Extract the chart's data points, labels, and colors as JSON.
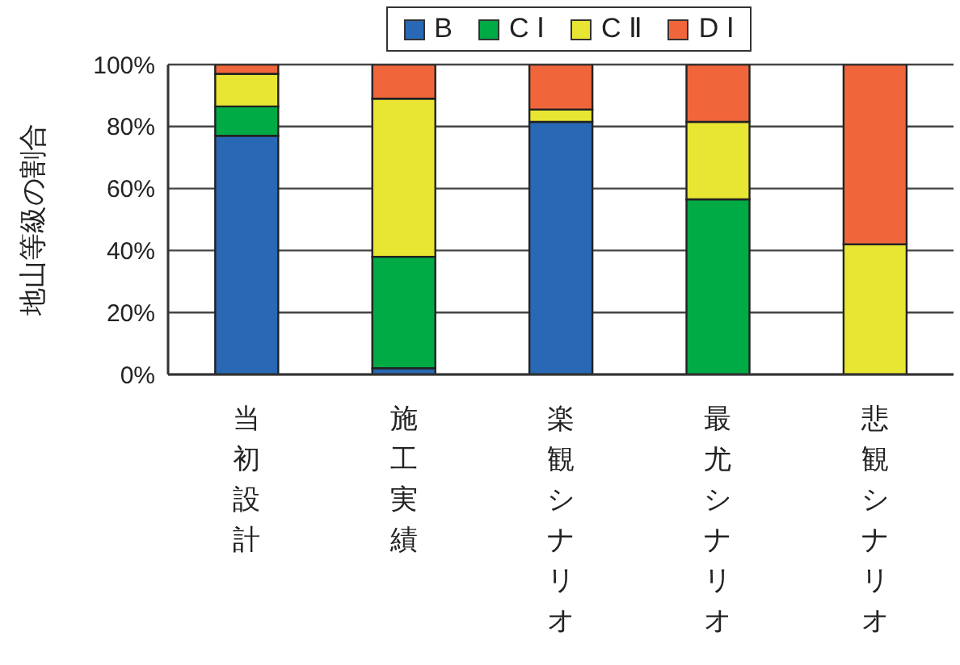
{
  "chart_data": {
    "type": "bar",
    "stacked": true,
    "categories": [
      "当初設計",
      "施工実績",
      "楽観シナリオ",
      "最尤シナリオ",
      "悲観シナリオ"
    ],
    "series": [
      {
        "name": "B",
        "color": "#2868b4",
        "values": [
          77,
          2,
          81.5,
          0,
          0
        ]
      },
      {
        "name": "C Ⅰ",
        "color": "#00aa45",
        "values": [
          9.5,
          36,
          0,
          56.5,
          0
        ]
      },
      {
        "name": "C Ⅱ",
        "color": "#e8e632",
        "values": [
          10.5,
          51,
          4,
          25,
          42
        ]
      },
      {
        "name": "D Ⅰ",
        "color": "#f0663a",
        "values": [
          3,
          11,
          14.5,
          18.5,
          58
        ]
      }
    ],
    "ylabel": "地山等級の割合",
    "ylim": [
      0,
      100
    ],
    "yticks": [
      {
        "value": 0,
        "label": "0%"
      },
      {
        "value": 20,
        "label": "20%"
      },
      {
        "value": 40,
        "label": "40%"
      },
      {
        "value": 60,
        "label": "60%"
      },
      {
        "value": 80,
        "label": "80%"
      },
      {
        "value": 100,
        "label": "100%"
      }
    ],
    "grid": "y",
    "legend": "top"
  }
}
